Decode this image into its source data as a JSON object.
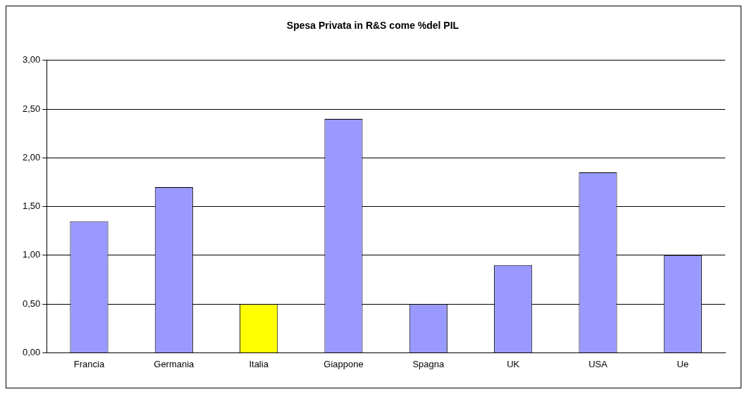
{
  "chart_data": {
    "type": "bar",
    "title": "Spesa Privata in R&S come %del PIL",
    "categories": [
      "Francia",
      "Germania",
      "Italia",
      "Giappone",
      "Spagna",
      "UK",
      "USA",
      "Ue"
    ],
    "values": [
      1.35,
      1.7,
      0.5,
      2.4,
      0.5,
      0.9,
      1.85,
      1.0
    ],
    "colors": [
      "#9999ff",
      "#9999ff",
      "#ffff00",
      "#9999ff",
      "#9999ff",
      "#9999ff",
      "#9999ff",
      "#9999ff"
    ],
    "ylim": [
      0,
      3
    ],
    "yticks": [
      {
        "value": 0,
        "label": "0,00"
      },
      {
        "value": 0.5,
        "label": "0,50"
      },
      {
        "value": 1,
        "label": "1,00"
      },
      {
        "value": 1.5,
        "label": "1,50"
      },
      {
        "value": 2,
        "label": "2,00"
      },
      {
        "value": 2.5,
        "label": "2,50"
      },
      {
        "value": 3,
        "label": "3,00"
      }
    ],
    "grid": "y",
    "legend": false
  }
}
